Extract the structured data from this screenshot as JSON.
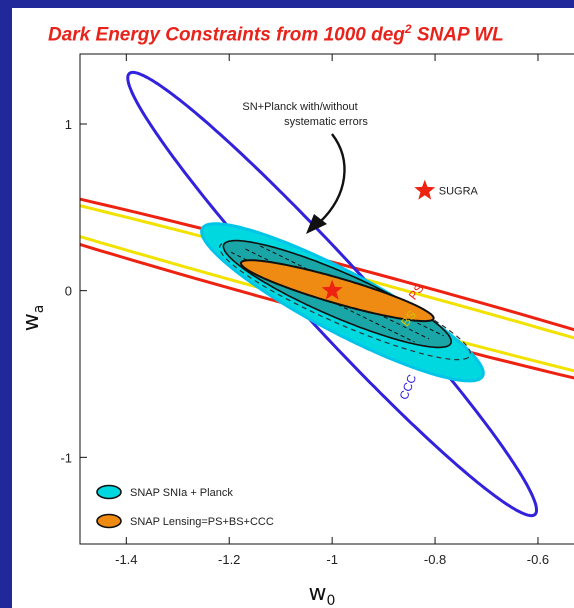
{
  "title_main": "Dark Energy Constraints from 1000 deg",
  "title_sup": "2",
  "title_tail": " SNAP WL",
  "chart_data": {
    "type": "scatter",
    "title": "Dark Energy Constraints from 1000 deg2 SNAP WL",
    "xlabel_base": "w",
    "xlabel_sub": "0",
    "ylabel_base": "w",
    "ylabel_sub": "a",
    "xlim": [
      -1.49,
      -0.53
    ],
    "ylim": [
      -1.52,
      1.42
    ],
    "xticks": [
      -1.4,
      -1.2,
      -1.0,
      -0.8,
      -0.6
    ],
    "xtick_labels": [
      "-1.4",
      "-1.2",
      "-1",
      "-0.8",
      "-0.6"
    ],
    "yticks": [
      -1,
      0,
      1
    ],
    "ytick_labels": [
      "-1",
      "0",
      "1"
    ],
    "fiducial": {
      "x": -1.0,
      "y": 0.0
    },
    "sugra": {
      "x": -0.82,
      "y": 0.6,
      "label": "SUGRA"
    },
    "contours": [
      {
        "name": "PS",
        "color": "#ee2211",
        "center": [
          -0.965,
          -0.02
        ],
        "angle": -40,
        "a": 1.25,
        "b": 0.125
      },
      {
        "name": "BS",
        "color": "#f2e200",
        "center": [
          -0.965,
          -0.02
        ],
        "angle": -40,
        "a": 1.25,
        "b": 0.085
      },
      {
        "name": "CCC",
        "color": "#3322dd",
        "center": [
          -1.0,
          -0.02
        ],
        "angle": -73.7,
        "a": 1.385,
        "b": 0.085
      },
      {
        "name": "SNAP SNIa + Planck",
        "color": "#00d8e0",
        "center": [
          -0.98,
          -0.07
        ],
        "angle": -61.2,
        "a": 0.535,
        "b": 0.105
      },
      {
        "name": "SNAP SNIa + Planck (no systematics)",
        "color": "#333333",
        "dashed": true,
        "center": [
          -0.975,
          -0.06
        ],
        "angle": -56.5,
        "a": 0.42,
        "b": 0.09
      },
      {
        "name": "SNAP SNIa + Planck (core)",
        "color": "#1aa6a6",
        "center": [
          -0.99,
          -0.02
        ],
        "angle": -56.5,
        "a": 0.38,
        "b": 0.085
      },
      {
        "name": "SNAP Lensing=PS+BS+CCC",
        "color": "#ef8a12",
        "center": [
          -0.99,
          0.0
        ],
        "angle": -44.2,
        "a": 0.255,
        "b": 0.058
      }
    ],
    "contour_labels": [
      {
        "text": "PS",
        "x": -0.84,
        "y": -0.06,
        "color": "#ee2211",
        "rotate": -52
      },
      {
        "text": "BS",
        "x": -0.855,
        "y": -0.22,
        "color": "#d4c200",
        "rotate": -52
      },
      {
        "text": "CCC",
        "x": -0.855,
        "y": -0.66,
        "color": "#3322dd",
        "rotate": -68
      }
    ],
    "annotation": {
      "line1": "SN+Planck with/without",
      "line2": "systematic errors"
    },
    "legend": {
      "placement": "lower-left",
      "entries": [
        {
          "label": "SNAP SNIa + Planck",
          "color": "#00d8e0"
        },
        {
          "label": "SNAP Lensing=PS+BS+CCC",
          "color": "#ef8a12"
        }
      ]
    },
    "grid": false
  }
}
